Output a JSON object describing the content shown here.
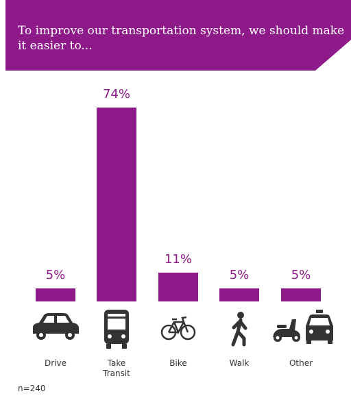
{
  "header": {
    "title": "To improve our transportation system, we should make it easier to..."
  },
  "chart_data": {
    "type": "bar",
    "categories": [
      "Drive",
      "Take Transit",
      "Bike",
      "Walk",
      "Other"
    ],
    "category_lines": [
      [
        "Drive"
      ],
      [
        "Take",
        "Transit"
      ],
      [
        "Bike"
      ],
      [
        "Walk"
      ],
      [
        "Other"
      ]
    ],
    "values": [
      5,
      74,
      11,
      5,
      5
    ],
    "value_labels": [
      "5%",
      "74%",
      "11%",
      "5%",
      "5%"
    ],
    "icons": [
      "car-icon",
      "bus-icon",
      "bicycle-icon",
      "pedestrian-icon",
      "scooter-taxi-icon"
    ],
    "ylim": [
      0,
      74
    ],
    "grid": false,
    "legend": "none"
  },
  "footnote": "n=240",
  "colors": {
    "accent": "#8e1a8a",
    "icon": "#333333"
  }
}
